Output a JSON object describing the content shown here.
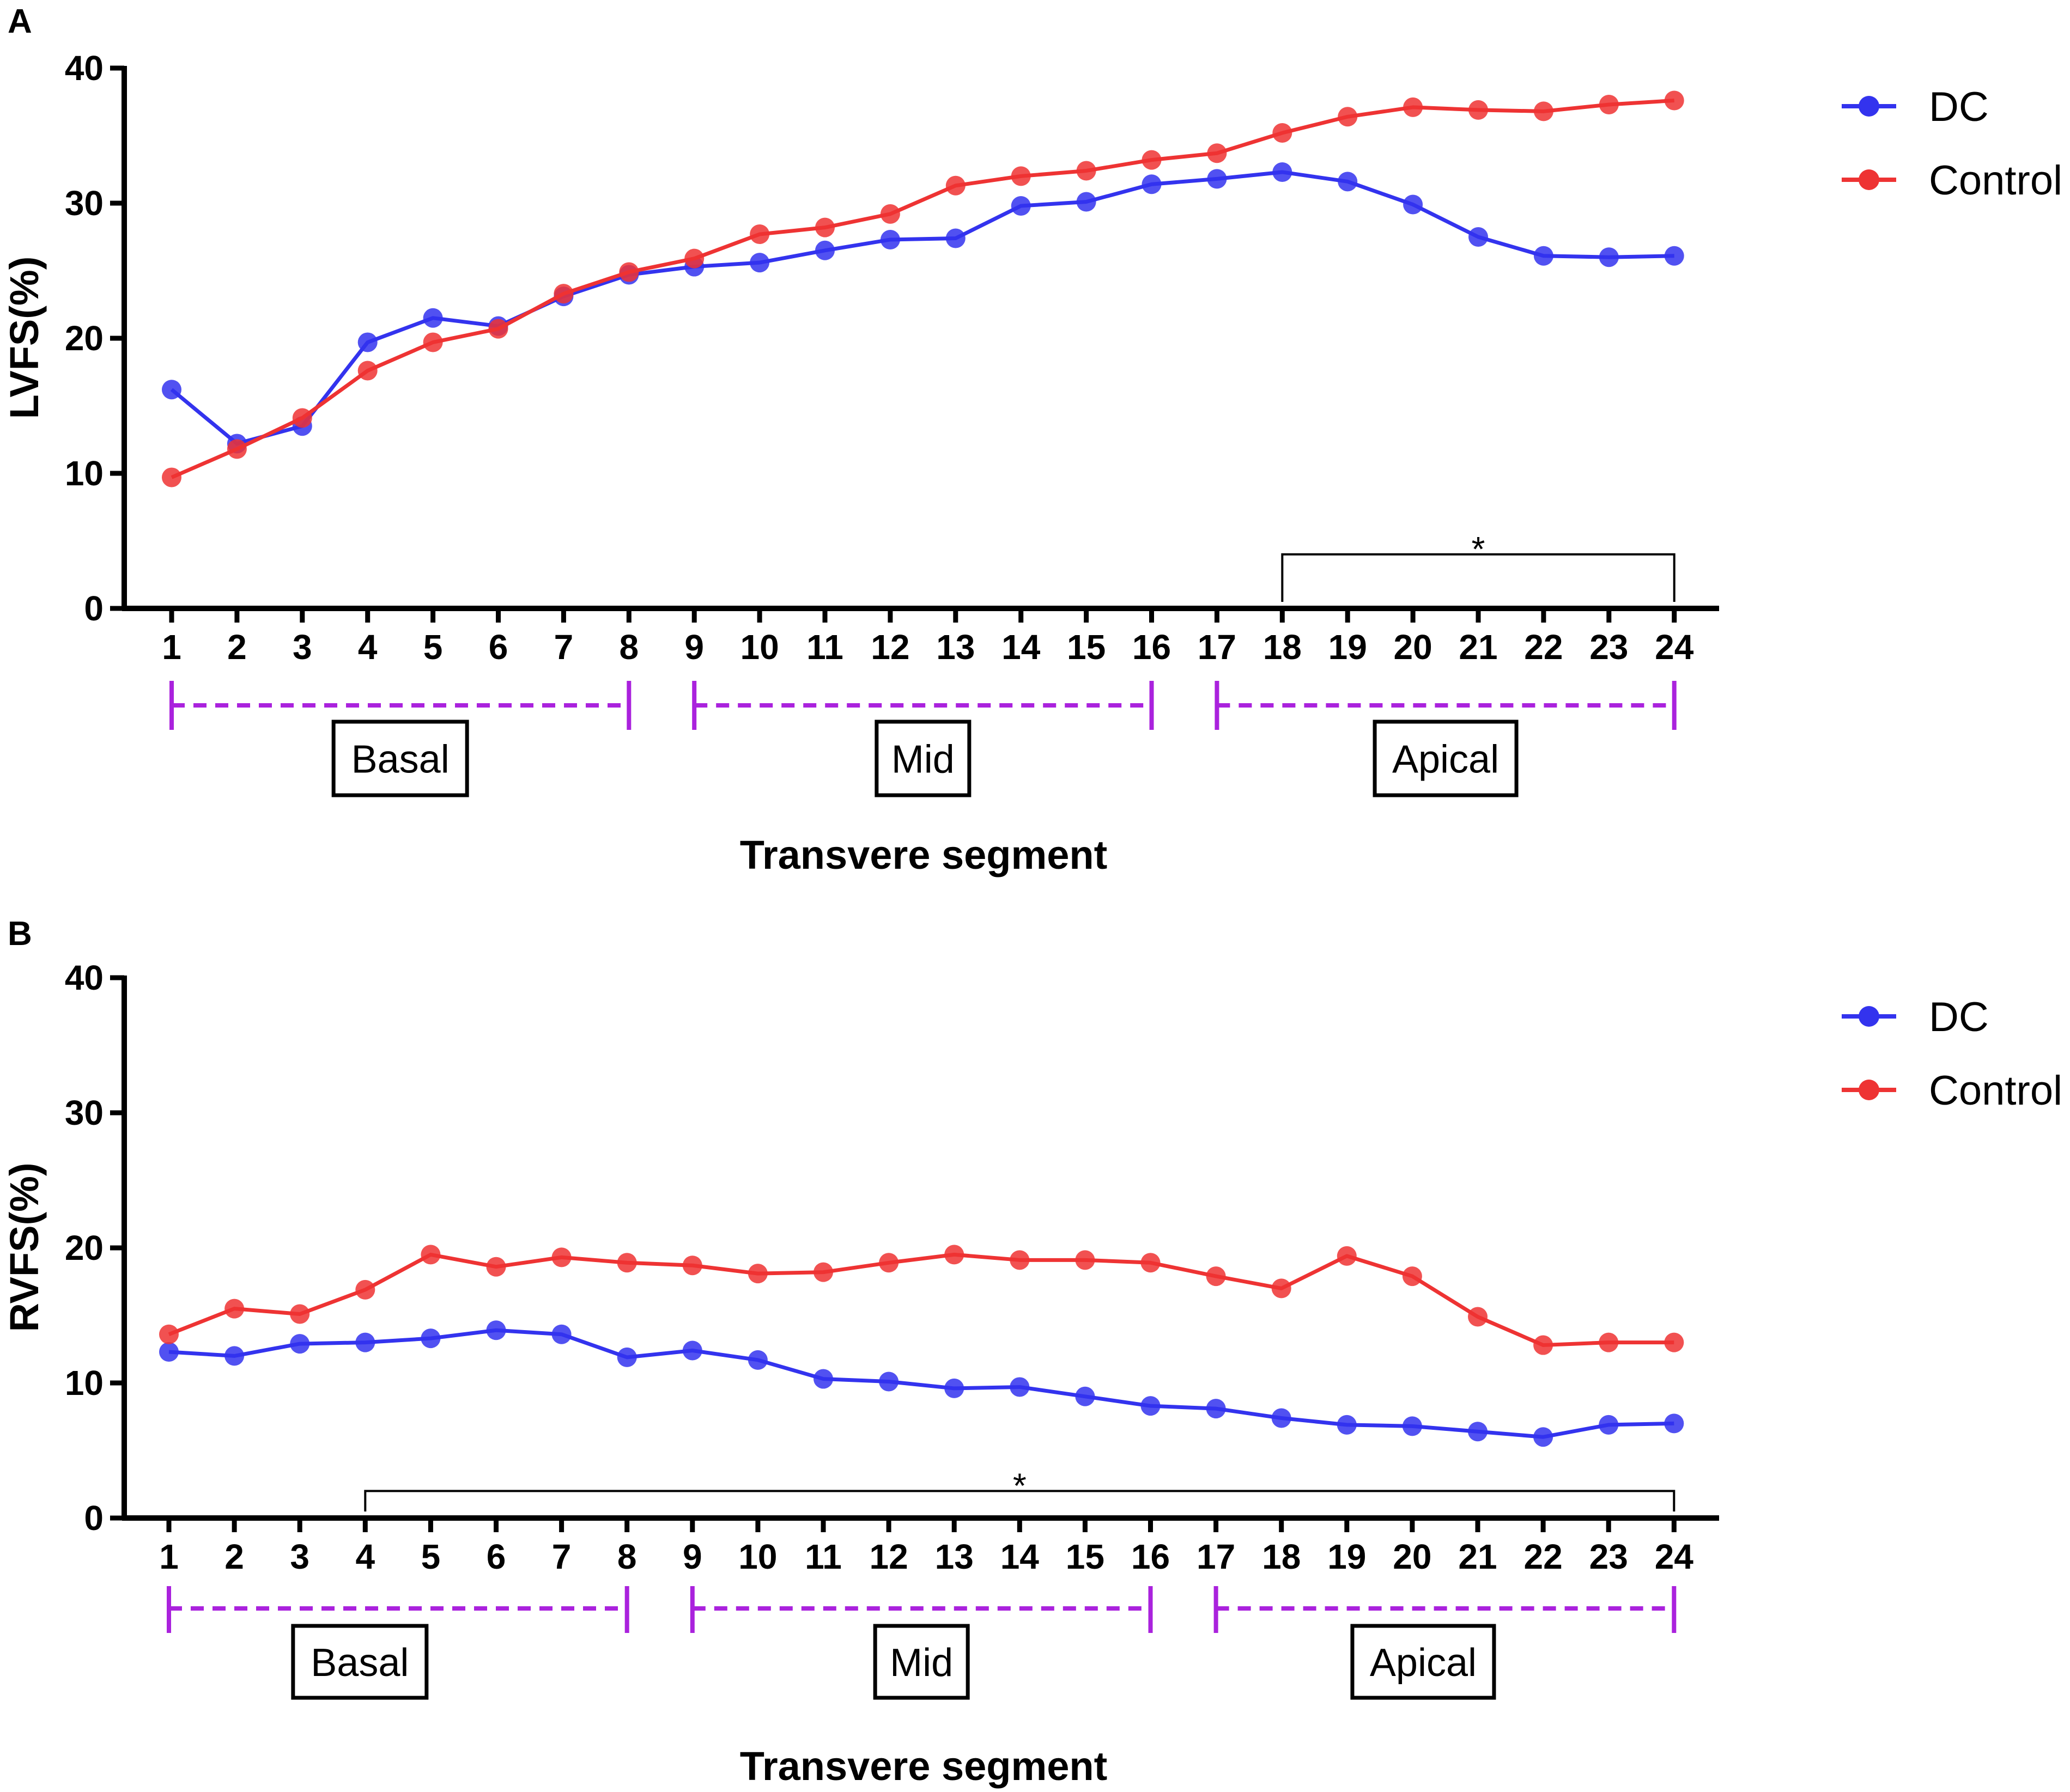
{
  "chart_data": [
    {
      "panel": "A",
      "type": "line",
      "ylabel": "LVFS(%)",
      "xlabel": "Transvere segment",
      "ylim": [
        0,
        40
      ],
      "yticks": [
        0,
        10,
        20,
        30,
        40
      ],
      "categories": [
        "1",
        "2",
        "3",
        "4",
        "5",
        "6",
        "7",
        "8",
        "9",
        "10",
        "11",
        "12",
        "13",
        "14",
        "15",
        "16",
        "17",
        "18",
        "19",
        "20",
        "21",
        "22",
        "23",
        "24"
      ],
      "series": [
        {
          "name": "DC",
          "color": "#3333ee",
          "values": [
            16.2,
            12.2,
            13.5,
            19.7,
            21.5,
            20.9,
            23.1,
            24.7,
            25.3,
            25.6,
            26.5,
            27.3,
            27.4,
            29.8,
            30.1,
            31.4,
            31.8,
            32.3,
            31.6,
            29.9,
            27.5,
            26.1,
            26.0,
            26.1
          ]
        },
        {
          "name": "Control",
          "color": "#ee3333",
          "values": [
            9.7,
            11.8,
            14.1,
            17.6,
            19.7,
            20.7,
            23.3,
            24.9,
            25.9,
            27.7,
            28.2,
            29.2,
            31.3,
            32.0,
            32.4,
            33.2,
            33.7,
            35.2,
            36.4,
            37.1,
            36.9,
            36.8,
            37.3,
            37.6
          ]
        }
      ],
      "regions": [
        {
          "label": "Basal",
          "from": 1,
          "to": 8
        },
        {
          "label": "Mid",
          "from": 9,
          "to": 16
        },
        {
          "label": "Apical",
          "from": 17,
          "to": 24
        }
      ],
      "significance": {
        "label": "*",
        "from": 18,
        "to": 24,
        "y": 4
      },
      "legend_position": "top-right"
    },
    {
      "panel": "B",
      "type": "line",
      "ylabel": "RVFS(%)",
      "xlabel": "Transvere segment",
      "ylim": [
        0,
        40
      ],
      "yticks": [
        0,
        10,
        20,
        30,
        40
      ],
      "categories": [
        "1",
        "2",
        "3",
        "4",
        "5",
        "6",
        "7",
        "8",
        "9",
        "10",
        "11",
        "12",
        "13",
        "14",
        "15",
        "16",
        "17",
        "18",
        "19",
        "20",
        "21",
        "22",
        "23",
        "24"
      ],
      "series": [
        {
          "name": "DC",
          "color": "#3333ee",
          "values": [
            12.3,
            12.0,
            12.9,
            13.0,
            13.3,
            13.9,
            13.6,
            11.9,
            12.4,
            11.7,
            10.3,
            10.1,
            9.6,
            9.7,
            9.0,
            8.3,
            8.1,
            7.4,
            6.9,
            6.8,
            6.4,
            6.0,
            6.9,
            7.0
          ]
        },
        {
          "name": "Control",
          "color": "#ee3333",
          "values": [
            13.6,
            15.5,
            15.1,
            16.9,
            19.5,
            18.6,
            19.3,
            18.9,
            18.7,
            18.1,
            18.2,
            18.9,
            19.5,
            19.1,
            19.1,
            18.9,
            17.9,
            17.0,
            19.4,
            17.9,
            14.9,
            12.8,
            13.0,
            13.0
          ]
        }
      ],
      "regions": [
        {
          "label": "Basal",
          "from": 1,
          "to": 8
        },
        {
          "label": "Mid",
          "from": 9,
          "to": 16
        },
        {
          "label": "Apical",
          "from": 17,
          "to": 24
        }
      ],
      "significance": {
        "label": "*",
        "from": 4,
        "to": 24,
        "y": 2
      },
      "legend_position": "top-right"
    }
  ],
  "colors": {
    "region_line": "#aa22dd",
    "axis": "#000000"
  }
}
